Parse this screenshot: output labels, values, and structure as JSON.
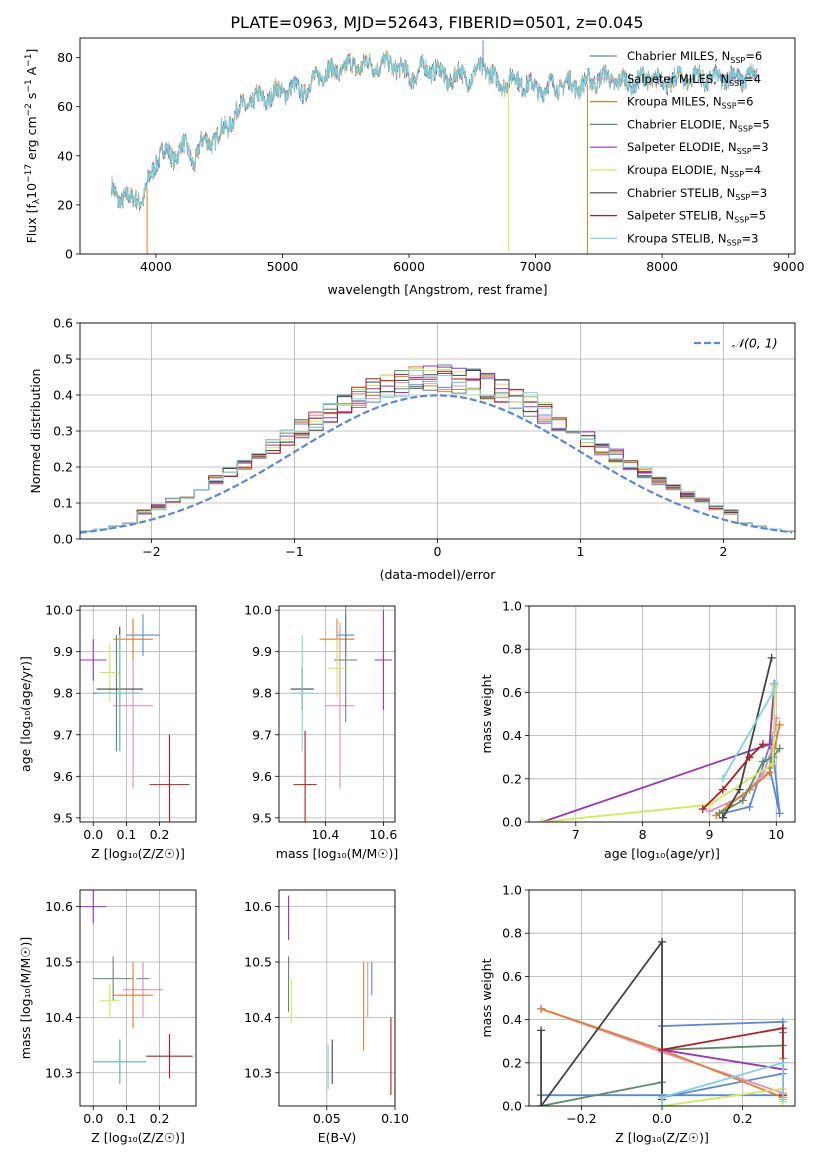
{
  "figure_title": "PLATE=0963, MJD=52643, FIBERID=0501, z=0.045",
  "colors": {
    "Chabrier MILES": "#5b88d6",
    "Salpeter MILES": "#e48fbd",
    "Kroupa MILES": "#e07f2a",
    "Chabrier ELODIE": "#5f8b69",
    "Salpeter ELODIE": "#9b34b9",
    "Kroupa ELODIE": "#d4e85a",
    "Chabrier STELIB": "#444444",
    "Salpeter STELIB": "#b01f1f",
    "Kroupa STELIB": "#7fd3dc",
    "normal_curve": "#5b88d6",
    "grid": "#b0b0b0"
  },
  "chart_data": [
    {
      "id": "spectrum",
      "type": "line",
      "title": "PLATE=0963, MJD=52643, FIBERID=0501, z=0.045",
      "xlabel": "wavelength [Angstrom, rest frame]",
      "ylabel_parts": [
        "Flux [f",
        "λ",
        "10",
        "−17",
        " erg cm",
        "−2",
        " s",
        "−1",
        " A",
        "−1",
        "]"
      ],
      "xlim": [
        3400,
        9050
      ],
      "ylim": [
        0,
        88
      ],
      "xticks": [
        4000,
        5000,
        6000,
        7000,
        8000,
        9000
      ],
      "yticks": [
        0,
        20,
        40,
        60,
        80
      ],
      "grid": false,
      "legend_position": "upper-right",
      "legend": [
        {
          "label": "Chabrier MILES",
          "nssp": "6"
        },
        {
          "label": "Salpeter MILES",
          "nssp": "4"
        },
        {
          "label": "Kroupa MILES",
          "nssp": "6"
        },
        {
          "label": "Chabrier ELODIE",
          "nssp": "5"
        },
        {
          "label": "Salpeter ELODIE",
          "nssp": "3"
        },
        {
          "label": "Kroupa ELODIE",
          "nssp": "4"
        },
        {
          "label": "Chabrier STELIB",
          "nssp": "3"
        },
        {
          "label": "Salpeter STELIB",
          "nssp": "5"
        },
        {
          "label": "Kroupa STELIB",
          "nssp": "3"
        }
      ],
      "continuum": {
        "wavelength": [
          3650,
          3700,
          3750,
          3800,
          3850,
          3900,
          3950,
          4000,
          4050,
          4100,
          4150,
          4200,
          4250,
          4300,
          4350,
          4400,
          4500,
          4600,
          4700,
          4800,
          4900,
          5000,
          5100,
          5200,
          5300,
          5400,
          5500,
          5600,
          5700,
          5800,
          5900,
          6000,
          6100,
          6200,
          6300,
          6400,
          6500,
          6600,
          6700,
          6800,
          6900,
          7000,
          7100,
          7200,
          7300,
          7400,
          7500,
          7600,
          7700,
          7800,
          7900,
          8000,
          8100,
          8200,
          8300,
          8400,
          8500,
          8600,
          8700
        ],
        "flux": [
          26,
          23,
          24,
          21,
          24,
          22,
          30,
          38,
          42,
          40,
          40,
          44,
          42,
          38,
          44,
          46,
          48,
          55,
          61,
          63,
          64,
          67,
          67,
          67,
          74,
          74,
          76,
          77,
          77,
          77,
          77,
          72,
          75,
          76,
          71,
          73,
          72,
          77,
          69,
          71,
          70,
          67,
          68,
          69,
          69,
          69,
          72,
          71,
          70,
          70,
          72,
          70,
          71,
          72,
          72,
          71,
          72,
          72,
          72
        ]
      },
      "spikes": [
        {
          "wavelength": 3930,
          "flux": 0,
          "color": "Kroupa MILES"
        },
        {
          "wavelength": 6585,
          "flux": 87,
          "color": "Chabrier MILES"
        },
        {
          "wavelength": 6785,
          "flux": 1,
          "color": "Kroupa ELODIE"
        },
        {
          "wavelength": 7410,
          "flux": 0,
          "color": "Kroupa MILES"
        }
      ]
    },
    {
      "id": "residual-hist",
      "type": "histogram",
      "xlabel": "(data-model)/error",
      "ylabel": "Normed distribution",
      "xlim": [
        -2.5,
        2.5
      ],
      "ylim": [
        0,
        0.6
      ],
      "xticks": [
        -2,
        -1,
        0,
        1,
        2
      ],
      "xticklabels": [
        "−2",
        "−1",
        "0",
        "1",
        "2"
      ],
      "yticks": [
        0.0,
        0.1,
        0.2,
        0.3,
        0.4,
        0.5,
        0.6
      ],
      "grid": true,
      "legend_position": "upper-right",
      "legend_label": "𝒩(0, 1)",
      "bin_width": 0.1,
      "normal": {
        "mean": 0,
        "sigma": 1
      }
    },
    {
      "id": "age-vs-Z",
      "type": "errorbar",
      "xlabel": "Z [log₁₀(Z/Z☉)]",
      "ylabel": "age  [log₁₀(age/yr)]",
      "xlim": [
        -0.04,
        0.31
      ],
      "ylim": [
        9.49,
        10.01
      ],
      "xticks": [
        0.0,
        0.1,
        0.2
      ],
      "yticks": [
        9.5,
        9.6,
        9.7,
        9.8,
        9.9,
        10.0
      ],
      "grid": true,
      "points": [
        {
          "model": "Chabrier MILES",
          "x": 0.15,
          "xerr": 0.05,
          "y": 9.94,
          "yerr": 0.05
        },
        {
          "model": "Salpeter MILES",
          "x": 0.12,
          "xerr": 0.06,
          "y": 9.77,
          "yerr": 0.2
        },
        {
          "model": "Kroupa MILES",
          "x": 0.12,
          "xerr": 0.06,
          "y": 9.93,
          "yerr": 0.05
        },
        {
          "model": "Chabrier ELODIE",
          "x": 0.07,
          "xerr": 0.07,
          "y": 9.8,
          "yerr": 0.14
        },
        {
          "model": "Salpeter ELODIE",
          "x": 0.0,
          "xerr": 0.04,
          "y": 9.88,
          "yerr": 0.05
        },
        {
          "model": "Kroupa ELODIE",
          "x": 0.05,
          "xerr": 0.03,
          "y": 9.85,
          "yerr": 0.07
        },
        {
          "model": "Chabrier STELIB",
          "x": 0.08,
          "xerr": 0.07,
          "y": 9.81,
          "yerr": 0.15
        },
        {
          "model": "Salpeter STELIB",
          "x": 0.23,
          "xerr": 0.06,
          "y": 9.58,
          "yerr": 0.12
        },
        {
          "model": "Kroupa STELIB",
          "x": 0.08,
          "xerr": 0.07,
          "y": 9.8,
          "yerr": 0.14
        }
      ]
    },
    {
      "id": "age-vs-mass",
      "type": "errorbar",
      "xlabel": "mass [log₁₀(M/M☉)]",
      "ylabel": "",
      "xlim": [
        10.24,
        10.64
      ],
      "ylim": [
        9.49,
        10.01
      ],
      "xticks": [
        10.4,
        10.6
      ],
      "yticks": [
        9.5,
        9.6,
        9.7,
        9.8,
        9.9,
        10.0
      ],
      "grid": true,
      "points": [
        {
          "model": "Chabrier MILES",
          "x": 10.47,
          "xerr": 0.03,
          "y": 9.94,
          "yerr": 0.05
        },
        {
          "model": "Salpeter MILES",
          "x": 10.45,
          "xerr": 0.05,
          "y": 9.77,
          "yerr": 0.2
        },
        {
          "model": "Kroupa MILES",
          "x": 10.44,
          "xerr": 0.06,
          "y": 9.93,
          "yerr": 0.05
        },
        {
          "model": "Chabrier ELODIE",
          "x": 10.47,
          "xerr": 0.04,
          "y": 9.88,
          "yerr": 0.15
        },
        {
          "model": "Salpeter ELODIE",
          "x": 10.6,
          "xerr": 0.03,
          "y": 9.88,
          "yerr": 0.12
        },
        {
          "model": "Kroupa ELODIE",
          "x": 10.44,
          "xerr": 0.03,
          "y": 9.86,
          "yerr": 0.07
        },
        {
          "model": "Chabrier STELIB",
          "x": 10.32,
          "xerr": 0.04,
          "y": 9.81,
          "yerr": 0.05
        },
        {
          "model": "Salpeter STELIB",
          "x": 10.33,
          "xerr": 0.04,
          "y": 9.58,
          "yerr": 0.13
        },
        {
          "model": "Kroupa STELIB",
          "x": 10.32,
          "xerr": 0.04,
          "y": 9.8,
          "yerr": 0.14
        }
      ]
    },
    {
      "id": "weight-vs-age",
      "type": "line",
      "xlabel": "age  [log₁₀(age/yr)]",
      "ylabel": "mass weight",
      "xlim": [
        6.3,
        10.28
      ],
      "ylim": [
        0,
        1.0
      ],
      "xticks": [
        7,
        8,
        9,
        10
      ],
      "yticks": [
        0.0,
        0.2,
        0.4,
        0.6,
        0.8,
        1.0
      ],
      "grid": true,
      "series": [
        {
          "model": "Chabrier MILES",
          "x": [
            9.2,
            9.6,
            9.95,
            9.9,
            10.05,
            9.95
          ],
          "y": [
            0.04,
            0.07,
            0.4,
            0.25,
            0.04,
            0.34
          ]
        },
        {
          "model": "Salpeter MILES",
          "x": [
            9.0,
            9.5,
            9.8,
            9.95,
            10.0
          ],
          "y": [
            0.05,
            0.12,
            0.22,
            0.35,
            0.48
          ]
        },
        {
          "model": "Kroupa MILES",
          "x": [
            9.1,
            9.3,
            9.6,
            9.9,
            10.05
          ],
          "y": [
            0.03,
            0.08,
            0.15,
            0.23,
            0.45
          ]
        },
        {
          "model": "Chabrier ELODIE",
          "x": [
            9.15,
            9.5,
            9.8,
            9.95,
            10.05
          ],
          "y": [
            0.04,
            0.1,
            0.28,
            0.3,
            0.34
          ]
        },
        {
          "model": "Salpeter ELODIE",
          "x": [
            6.5,
            9.9,
            9.97
          ],
          "y": [
            0.0,
            0.36,
            0.64
          ]
        },
        {
          "model": "Kroupa ELODIE",
          "x": [
            6.5,
            9.0,
            9.95,
            9.98
          ],
          "y": [
            0.0,
            0.08,
            0.27,
            0.63
          ]
        },
        {
          "model": "Chabrier STELIB",
          "x": [
            9.2,
            9.45,
            9.93
          ],
          "y": [
            0.02,
            0.15,
            0.76
          ]
        },
        {
          "model": "Salpeter STELIB",
          "x": [
            8.9,
            9.2,
            9.6,
            9.8
          ],
          "y": [
            0.06,
            0.15,
            0.3,
            0.36
          ]
        },
        {
          "model": "Kroupa STELIB",
          "x": [
            9.2,
            9.95,
            9.98
          ],
          "y": [
            0.2,
            0.6,
            0.64
          ]
        }
      ]
    },
    {
      "id": "mass-vs-Z",
      "type": "errorbar",
      "xlabel": "Z [log₁₀(Z/Z☉)]",
      "ylabel": "mass [log₁₀(M/M☉)]",
      "xlim": [
        -0.04,
        0.31
      ],
      "ylim": [
        10.24,
        10.63
      ],
      "xticks": [
        0.0,
        0.1,
        0.2
      ],
      "yticks": [
        10.3,
        10.4,
        10.5,
        10.6
      ],
      "grid": true,
      "points": [
        {
          "model": "Chabrier MILES",
          "x": 0.15,
          "xerr": 0.02,
          "y": 10.47,
          "yerr": 0.03
        },
        {
          "model": "Salpeter MILES",
          "x": 0.15,
          "xerr": 0.06,
          "y": 10.45,
          "yerr": 0.05
        },
        {
          "model": "Kroupa MILES",
          "x": 0.12,
          "xerr": 0.06,
          "y": 10.44,
          "yerr": 0.06
        },
        {
          "model": "Chabrier ELODIE",
          "x": 0.06,
          "xerr": 0.06,
          "y": 10.47,
          "yerr": 0.04
        },
        {
          "model": "Salpeter ELODIE",
          "x": 0.0,
          "xerr": 0.04,
          "y": 10.6,
          "yerr": 0.03
        },
        {
          "model": "Kroupa ELODIE",
          "x": 0.05,
          "xerr": 0.03,
          "y": 10.43,
          "yerr": 0.03
        },
        {
          "model": "Chabrier STELIB",
          "x": 0.08,
          "xerr": 0.08,
          "y": 10.32,
          "yerr": 0.04
        },
        {
          "model": "Salpeter STELIB",
          "x": 0.23,
          "xerr": 0.07,
          "y": 10.33,
          "yerr": 0.04
        },
        {
          "model": "Kroupa STELIB",
          "x": 0.08,
          "xerr": 0.08,
          "y": 10.32,
          "yerr": 0.04
        }
      ]
    },
    {
      "id": "mass-vs-ebv",
      "type": "errorbar",
      "xlabel": "E(B-V)",
      "ylabel": "",
      "xlim": [
        0.015,
        0.1
      ],
      "ylim": [
        10.24,
        10.63
      ],
      "xticks": [
        0.05,
        0.1
      ],
      "yticks": [
        10.3,
        10.4,
        10.5,
        10.6
      ],
      "grid": true,
      "points": [
        {
          "model": "Chabrier MILES",
          "x": 0.083,
          "xerr": 0.0,
          "y": 10.47,
          "yerr": 0.03
        },
        {
          "model": "Salpeter MILES",
          "x": 0.08,
          "xerr": 0.0,
          "y": 10.45,
          "yerr": 0.05
        },
        {
          "model": "Kroupa MILES",
          "x": 0.077,
          "xerr": 0.0,
          "y": 10.42,
          "yerr": 0.08
        },
        {
          "model": "Chabrier ELODIE",
          "x": 0.022,
          "xerr": 0.0,
          "y": 10.46,
          "yerr": 0.05
        },
        {
          "model": "Salpeter ELODIE",
          "x": 0.022,
          "xerr": 0.0,
          "y": 10.58,
          "yerr": 0.04
        },
        {
          "model": "Kroupa ELODIE",
          "x": 0.024,
          "xerr": 0.0,
          "y": 10.43,
          "yerr": 0.04
        },
        {
          "model": "Chabrier STELIB",
          "x": 0.054,
          "xerr": 0.0,
          "y": 10.32,
          "yerr": 0.04
        },
        {
          "model": "Salpeter STELIB",
          "x": 0.097,
          "xerr": 0.0,
          "y": 10.33,
          "yerr": 0.07
        },
        {
          "model": "Kroupa STELIB",
          "x": 0.051,
          "xerr": 0.0,
          "y": 10.31,
          "yerr": 0.04
        }
      ]
    },
    {
      "id": "weight-vs-Z",
      "type": "line",
      "xlabel": "Z [log₁₀(Z/Z☉)]",
      "ylabel": "mass weight",
      "xlim": [
        -0.33,
        0.33
      ],
      "ylim": [
        0,
        1.0
      ],
      "xticks": [
        -0.2,
        0.0,
        0.2
      ],
      "xticklabels": [
        "−0.2",
        "0.0",
        "0.2"
      ],
      "yticks": [
        0.0,
        0.2,
        0.4,
        0.6,
        0.8,
        1.0
      ],
      "grid": true,
      "series": [
        {
          "model": "Chabrier MILES",
          "x": [
            -0.3,
            0.3,
            0.3,
            0.0,
            0.0,
            0.3,
            0.3
          ],
          "y": [
            0.05,
            0.05,
            0.39,
            0.37,
            0.04,
            0.15,
            0.34
          ]
        },
        {
          "model": "Salpeter MILES",
          "x": [
            -0.3,
            0.0,
            0.3
          ],
          "y": [
            0.45,
            0.25,
            0.06
          ]
        },
        {
          "model": "Kroupa MILES",
          "x": [
            -0.3,
            0.0,
            0.3,
            0.3
          ],
          "y": [
            0.45,
            0.26,
            0.04,
            0.22
          ]
        },
        {
          "model": "Chabrier ELODIE",
          "x": [
            -0.3,
            0.0,
            0.0,
            0.3
          ],
          "y": [
            0.0,
            0.11,
            0.26,
            0.28
          ]
        },
        {
          "model": "Salpeter ELODIE",
          "x": [
            0.0,
            0.0,
            0.3
          ],
          "y": [
            0.04,
            0.26,
            0.17
          ]
        },
        {
          "model": "Kroupa ELODIE",
          "x": [
            0.0,
            0.3,
            0.3
          ],
          "y": [
            0.0,
            0.08,
            0.02
          ]
        },
        {
          "model": "Chabrier STELIB",
          "x": [
            -0.3,
            -0.3,
            0.0,
            0.0
          ],
          "y": [
            0.35,
            0.0,
            0.76,
            0.03
          ]
        },
        {
          "model": "Salpeter STELIB",
          "x": [
            0.0,
            0.3,
            0.3
          ],
          "y": [
            0.26,
            0.36,
            0.05
          ]
        },
        {
          "model": "Kroupa STELIB",
          "x": [
            0.0,
            0.0,
            0.3,
            0.3
          ],
          "y": [
            0.0,
            0.04,
            0.2,
            0.03
          ]
        }
      ]
    }
  ]
}
